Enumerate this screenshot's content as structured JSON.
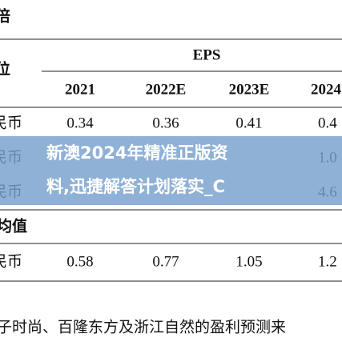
{
  "table": {
    "corner_top": "倍",
    "corner_unit": "位",
    "group_header": "EPS",
    "columns": [
      "2021",
      "2022E",
      "2023E",
      "2024"
    ],
    "rows": [
      {
        "label": "民币",
        "cells": [
          "0.34",
          "0.36",
          "0.41",
          "0.4"
        ]
      },
      {
        "label": "民币",
        "cells": [
          "",
          "",
          "",
          "1.0"
        ]
      },
      {
        "label": "民币",
        "cells": [
          "",
          "",
          "",
          "4.6"
        ]
      }
    ],
    "section": "均值",
    "section_rows": [
      {
        "label": "民币",
        "cells": [
          "0.58",
          "0.77",
          "1.05",
          "1.2"
        ]
      }
    ]
  },
  "footnote": "子时尚、百隆东方及浙江自然的盈利预测来",
  "banner": {
    "lines": [
      "新澳2024年精准正版资",
      "料,迅捷解答计划落实_C"
    ]
  }
}
